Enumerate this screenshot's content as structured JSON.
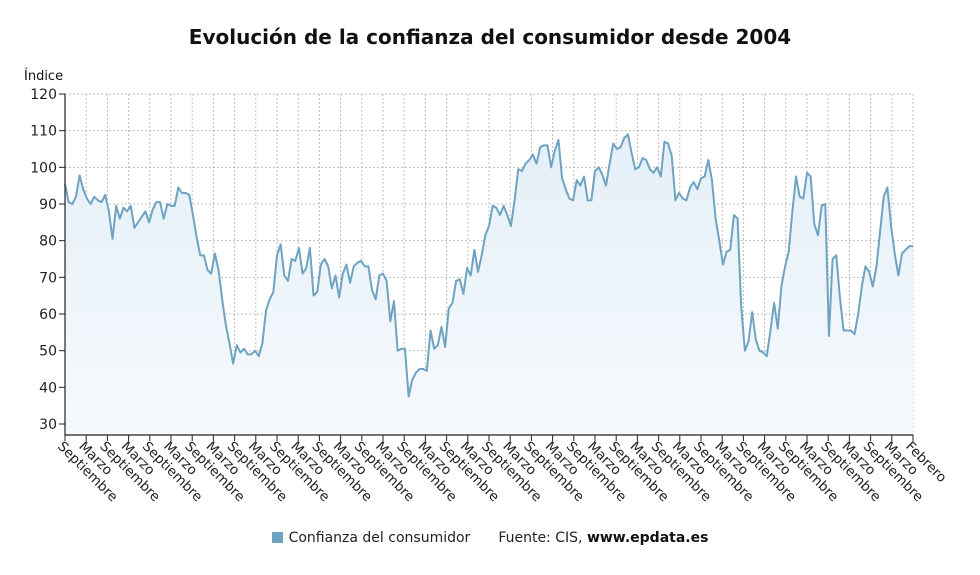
{
  "title": "Evolución de la confianza del consumidor desde 2004",
  "legend": {
    "series_label": "Confianza del consumidor",
    "source_label": "Fuente: CIS,",
    "source_site": "www.epdata.es"
  },
  "colors": {
    "line": "#6ea3c2",
    "fill_top": "#e4eff7",
    "fill_bottom": "#f7fafd",
    "grid": "#bdbdbd",
    "axis": "#222222"
  },
  "chart_data": {
    "type": "area",
    "title": "Evolución de la confianza del consumidor desde 2004",
    "ylabel": "Índice",
    "xlabel": "",
    "ylim": [
      27,
      120
    ],
    "yticks": [
      30,
      40,
      50,
      60,
      70,
      80,
      90,
      100,
      110,
      120
    ],
    "grid": true,
    "legend_position": "bottom",
    "x_tick_labels": [
      "Septiembre",
      "Marzo",
      "Septiembre",
      "Marzo",
      "Septiembre",
      "Marzo",
      "Septiembre",
      "Marzo",
      "Septiembre",
      "Marzo",
      "Septiembre",
      "Marzo",
      "Septiembre",
      "Marzo",
      "Septiembre",
      "Marzo",
      "Septiembre",
      "Marzo",
      "Septiembre",
      "Marzo",
      "Septiembre",
      "Marzo",
      "Septiembre",
      "Marzo",
      "Septiembre",
      "Marzo",
      "Septiembre",
      "Marzo",
      "Septiembre",
      "Marzo",
      "Septiembre",
      "Marzo",
      "Septiembre",
      "Marzo",
      "Septiembre",
      "Marzo",
      "Septiembre",
      "Marzo",
      "Septiembre",
      "Marzo",
      "Febrero"
    ],
    "series": [
      {
        "name": "Confianza del consumidor",
        "values": [
          95.5,
          90.5,
          90.0,
          92.0,
          97.8,
          94.0,
          91.5,
          90.0,
          92.0,
          91.0,
          90.5,
          92.5,
          88.0,
          80.5,
          89.5,
          86.0,
          89.0,
          88.0,
          89.5,
          83.5,
          85.0,
          86.5,
          88.0,
          85.0,
          88.5,
          90.5,
          90.5,
          86.0,
          90.0,
          89.5,
          89.5,
          94.5,
          93.0,
          93.0,
          92.5,
          87.0,
          81.0,
          76.0,
          76.0,
          72.0,
          71.0,
          76.5,
          72.0,
          64.0,
          57.0,
          52.0,
          46.5,
          51.5,
          49.5,
          50.5,
          49.0,
          49.0,
          50.0,
          48.5,
          52.0,
          61.0,
          64.0,
          66.0,
          76.0,
          79.0,
          70.5,
          69.0,
          75.0,
          74.5,
          78.0,
          71.0,
          72.5,
          78.0,
          65.0,
          66.0,
          73.5,
          75.0,
          73.0,
          67.0,
          70.5,
          64.5,
          71.0,
          73.5,
          68.5,
          73.0,
          74.0,
          74.5,
          73.0,
          73.0,
          66.5,
          64.0,
          70.5,
          71.0,
          69.0,
          58.0,
          63.5,
          50.0,
          50.5,
          50.5,
          37.5,
          42.0,
          44.0,
          45.0,
          45.0,
          44.5,
          55.5,
          50.5,
          51.5,
          56.5,
          51.0,
          61.5,
          63.0,
          69.0,
          69.5,
          65.5,
          72.5,
          70.5,
          77.5,
          71.5,
          76.0,
          81.5,
          84.0,
          89.5,
          89.0,
          87.0,
          89.5,
          87.0,
          84.0,
          91.0,
          99.5,
          99.0,
          101.0,
          102.0,
          103.5,
          101.0,
          105.5,
          106.0,
          106.0,
          100.0,
          104.5,
          107.5,
          97.0,
          94.0,
          91.5,
          91.0,
          96.5,
          95.0,
          97.5,
          91.0,
          91.0,
          99.0,
          100.0,
          98.0,
          95.0,
          101.0,
          106.5,
          105.0,
          105.5,
          108.0,
          109.0,
          104.0,
          99.5,
          100.0,
          102.5,
          102.0,
          99.5,
          98.5,
          100.0,
          97.5,
          107.0,
          106.5,
          103.0,
          91.0,
          93.0,
          91.5,
          91.0,
          94.5,
          96.0,
          94.0,
          97.0,
          97.5,
          102.0,
          96.5,
          86.0,
          80.0,
          73.5,
          77.0,
          77.5,
          87.0,
          86.0,
          62.0,
          50.0,
          52.5,
          60.5,
          53.0,
          50.0,
          49.5,
          48.5,
          55.5,
          63.0,
          56.0,
          67.5,
          73.0,
          77.0,
          88.0,
          97.5,
          92.0,
          91.5,
          98.5,
          97.5,
          84.5,
          81.5,
          89.5,
          90.0,
          54.0,
          75.0,
          76.0,
          64.5,
          55.5,
          55.5,
          55.5,
          54.5,
          60.0,
          67.5,
          73.0,
          71.5,
          67.5,
          73.0,
          82.5,
          92.0,
          94.5,
          84.0,
          76.5,
          70.5,
          76.5,
          77.5,
          78.5,
          78.5
        ]
      }
    ]
  }
}
